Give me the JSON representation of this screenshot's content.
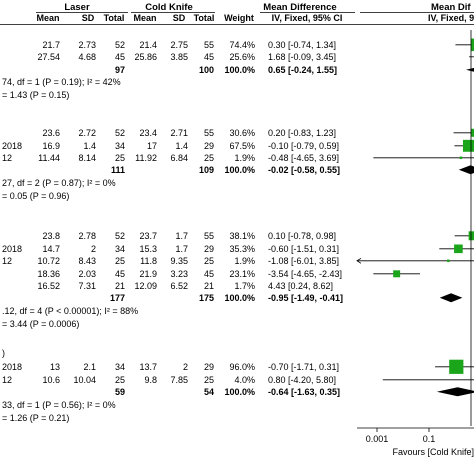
{
  "header": {
    "group_laser": "Laser",
    "group_cold_knife": "Cold Knife",
    "mean_difference": "Mean Difference",
    "mean_difference_right": "Mean Dif",
    "cols": [
      "Mean",
      "SD",
      "Total",
      "Mean",
      "SD",
      "Total",
      "Weight"
    ],
    "method": "IV, Fixed, 95% CI",
    "method_right": "IV, Fixed, 95% CI"
  },
  "chart_data": {
    "type": "forest",
    "subgroups": [
      {
        "studies": [
          {
            "label": "",
            "laser_mean": "21.7",
            "laser_sd": "2.73",
            "laser_n": "52",
            "ck_mean": "21.4",
            "ck_sd": "2.75",
            "ck_n": "55",
            "weight": "74.4%",
            "ci_text": "0.30 [-0.74, 1.34]",
            "md": 0.3,
            "lo": -0.74,
            "hi": 1.34,
            "w": 74.4
          },
          {
            "label": "",
            "laser_mean": "27.54",
            "laser_sd": "4.68",
            "laser_n": "45",
            "ck_mean": "25.86",
            "ck_sd": "3.85",
            "ck_n": "45",
            "weight": "25.6%",
            "ci_text": "1.68 [-0.09, 3.45]",
            "md": 1.68,
            "lo": -0.09,
            "hi": 3.45,
            "w": 25.6
          }
        ],
        "total": {
          "laser_n": "97",
          "ck_n": "100",
          "weight": "100.0%",
          "ci_text": "0.65 [-0.24, 1.55]",
          "md": 0.65,
          "lo": -0.24,
          "hi": 1.55
        },
        "heterogeneity": "74, df = 1 (P = 0.19); I² = 42%",
        "overall": "= 1.43 (P = 0.15)"
      },
      {
        "studies": [
          {
            "label": "",
            "laser_mean": "23.6",
            "laser_sd": "2.72",
            "laser_n": "52",
            "ck_mean": "23.4",
            "ck_sd": "2.71",
            "ck_n": "55",
            "weight": "30.6%",
            "ci_text": "0.20 [-0.83, 1.23]",
            "md": 0.2,
            "lo": -0.83,
            "hi": 1.23,
            "w": 30.6
          },
          {
            "label": "2018",
            "laser_mean": "16.9",
            "laser_sd": "1.4",
            "laser_n": "34",
            "ck_mean": "17",
            "ck_sd": "1.4",
            "ck_n": "29",
            "weight": "67.5%",
            "ci_text": "-0.10 [-0.79, 0.59]",
            "md": -0.1,
            "lo": -0.79,
            "hi": 0.59,
            "w": 67.5
          },
          {
            "label": "12",
            "laser_mean": "11.44",
            "laser_sd": "8.14",
            "laser_n": "25",
            "ck_mean": "11.92",
            "ck_sd": "6.84",
            "ck_n": "25",
            "weight": "1.9%",
            "ci_text": "-0.48 [-4.65, 3.69]",
            "md": -0.48,
            "lo": -4.65,
            "hi": 3.69,
            "w": 1.9
          }
        ],
        "total": {
          "laser_n": "111",
          "ck_n": "109",
          "weight": "100.0%",
          "ci_text": "-0.02 [-0.58, 0.55]",
          "md": -0.02,
          "lo": -0.58,
          "hi": 0.55
        },
        "heterogeneity": "27, df = 2 (P = 0.87); I² = 0%",
        "overall": "= 0.05 (P = 0.96)"
      },
      {
        "studies": [
          {
            "label": "",
            "laser_mean": "23.8",
            "laser_sd": "2.78",
            "laser_n": "52",
            "ck_mean": "23.7",
            "ck_sd": "1.7",
            "ck_n": "55",
            "weight": "38.1%",
            "ci_text": "0.10 [-0.78, 0.98]",
            "md": 0.1,
            "lo": -0.78,
            "hi": 0.98,
            "w": 38.1
          },
          {
            "label": "2018",
            "laser_mean": "14.7",
            "laser_sd": "2",
            "laser_n": "34",
            "ck_mean": "15.3",
            "ck_sd": "1.7",
            "ck_n": "29",
            "weight": "35.3%",
            "ci_text": "-0.60 [-1.51, 0.31]",
            "md": -0.6,
            "lo": -1.51,
            "hi": 0.31,
            "w": 35.3
          },
          {
            "label": "12",
            "laser_mean": "10.72",
            "laser_sd": "8.43",
            "laser_n": "25",
            "ck_mean": "11.8",
            "ck_sd": "9.35",
            "ck_n": "25",
            "weight": "1.9%",
            "ci_text": "-1.08 [-6.01, 3.85]",
            "md": -1.08,
            "lo": -6.01,
            "hi": 3.85,
            "w": 1.9
          },
          {
            "label": "",
            "laser_mean": "18.36",
            "laser_sd": "2.03",
            "laser_n": "45",
            "ck_mean": "21.9",
            "ck_sd": "3.23",
            "ck_n": "45",
            "weight": "23.1%",
            "ci_text": "-3.54 [-4.65, -2.43]",
            "md": -3.54,
            "lo": -4.65,
            "hi": -2.43,
            "w": 23.1
          },
          {
            "label": "",
            "laser_mean": "16.52",
            "laser_sd": "7.31",
            "laser_n": "21",
            "ck_mean": "12.09",
            "ck_sd": "6.52",
            "ck_n": "21",
            "weight": "1.7%",
            "ci_text": "4.43 [0.24, 8.62]",
            "md": 4.43,
            "lo": 0.24,
            "hi": 8.62,
            "w": 1.7
          }
        ],
        "total": {
          "laser_n": "177",
          "ck_n": "175",
          "weight": "100.0%",
          "ci_text": "-0.95 [-1.49, -0.41]",
          "md": -0.95,
          "lo": -1.49,
          "hi": -0.41
        },
        "heterogeneity": ".12, df = 4 (P < 0.00001); I² = 88%",
        "overall": "= 3.44 (P = 0.0006)"
      },
      {
        "header_fragment": ")",
        "studies": [
          {
            "label": "2018",
            "laser_mean": "13",
            "laser_sd": "2.1",
            "laser_n": "34",
            "ck_mean": "13.7",
            "ck_sd": "2",
            "ck_n": "29",
            "weight": "96.0%",
            "ci_text": "-0.70 [-1.71, 0.31]",
            "md": -0.7,
            "lo": -1.71,
            "hi": 0.31,
            "w": 96.0
          },
          {
            "label": "12",
            "laser_mean": "10.6",
            "laser_sd": "10.04",
            "laser_n": "25",
            "ck_mean": "9.8",
            "ck_sd": "7.85",
            "ck_n": "25",
            "weight": "4.0%",
            "ci_text": "0.80 [-4.20, 5.80]",
            "md": 0.8,
            "lo": -4.2,
            "hi": 5.8,
            "w": 4.0
          }
        ],
        "total": {
          "laser_n": "59",
          "ck_n": "54",
          "weight": "100.0%",
          "ci_text": "-0.64 [-1.63, 0.35]",
          "md": -0.64,
          "lo": -1.63,
          "hi": 0.35
        },
        "heterogeneity": "33, df = 1 (P = 0.56); I² = 0%",
        "overall": "= 1.26 (P = 0.21)"
      }
    ],
    "axis": {
      "scale": "log",
      "ticks": [
        {
          "value": 0.001,
          "label": "0.001"
        },
        {
          "value": 0.1,
          "label": "0.1"
        }
      ],
      "xlabel_left": "Favours [Cold Knife]"
    },
    "colors": {
      "box": "#1aa51a",
      "diamond": "#000000",
      "line": "#000000"
    }
  }
}
